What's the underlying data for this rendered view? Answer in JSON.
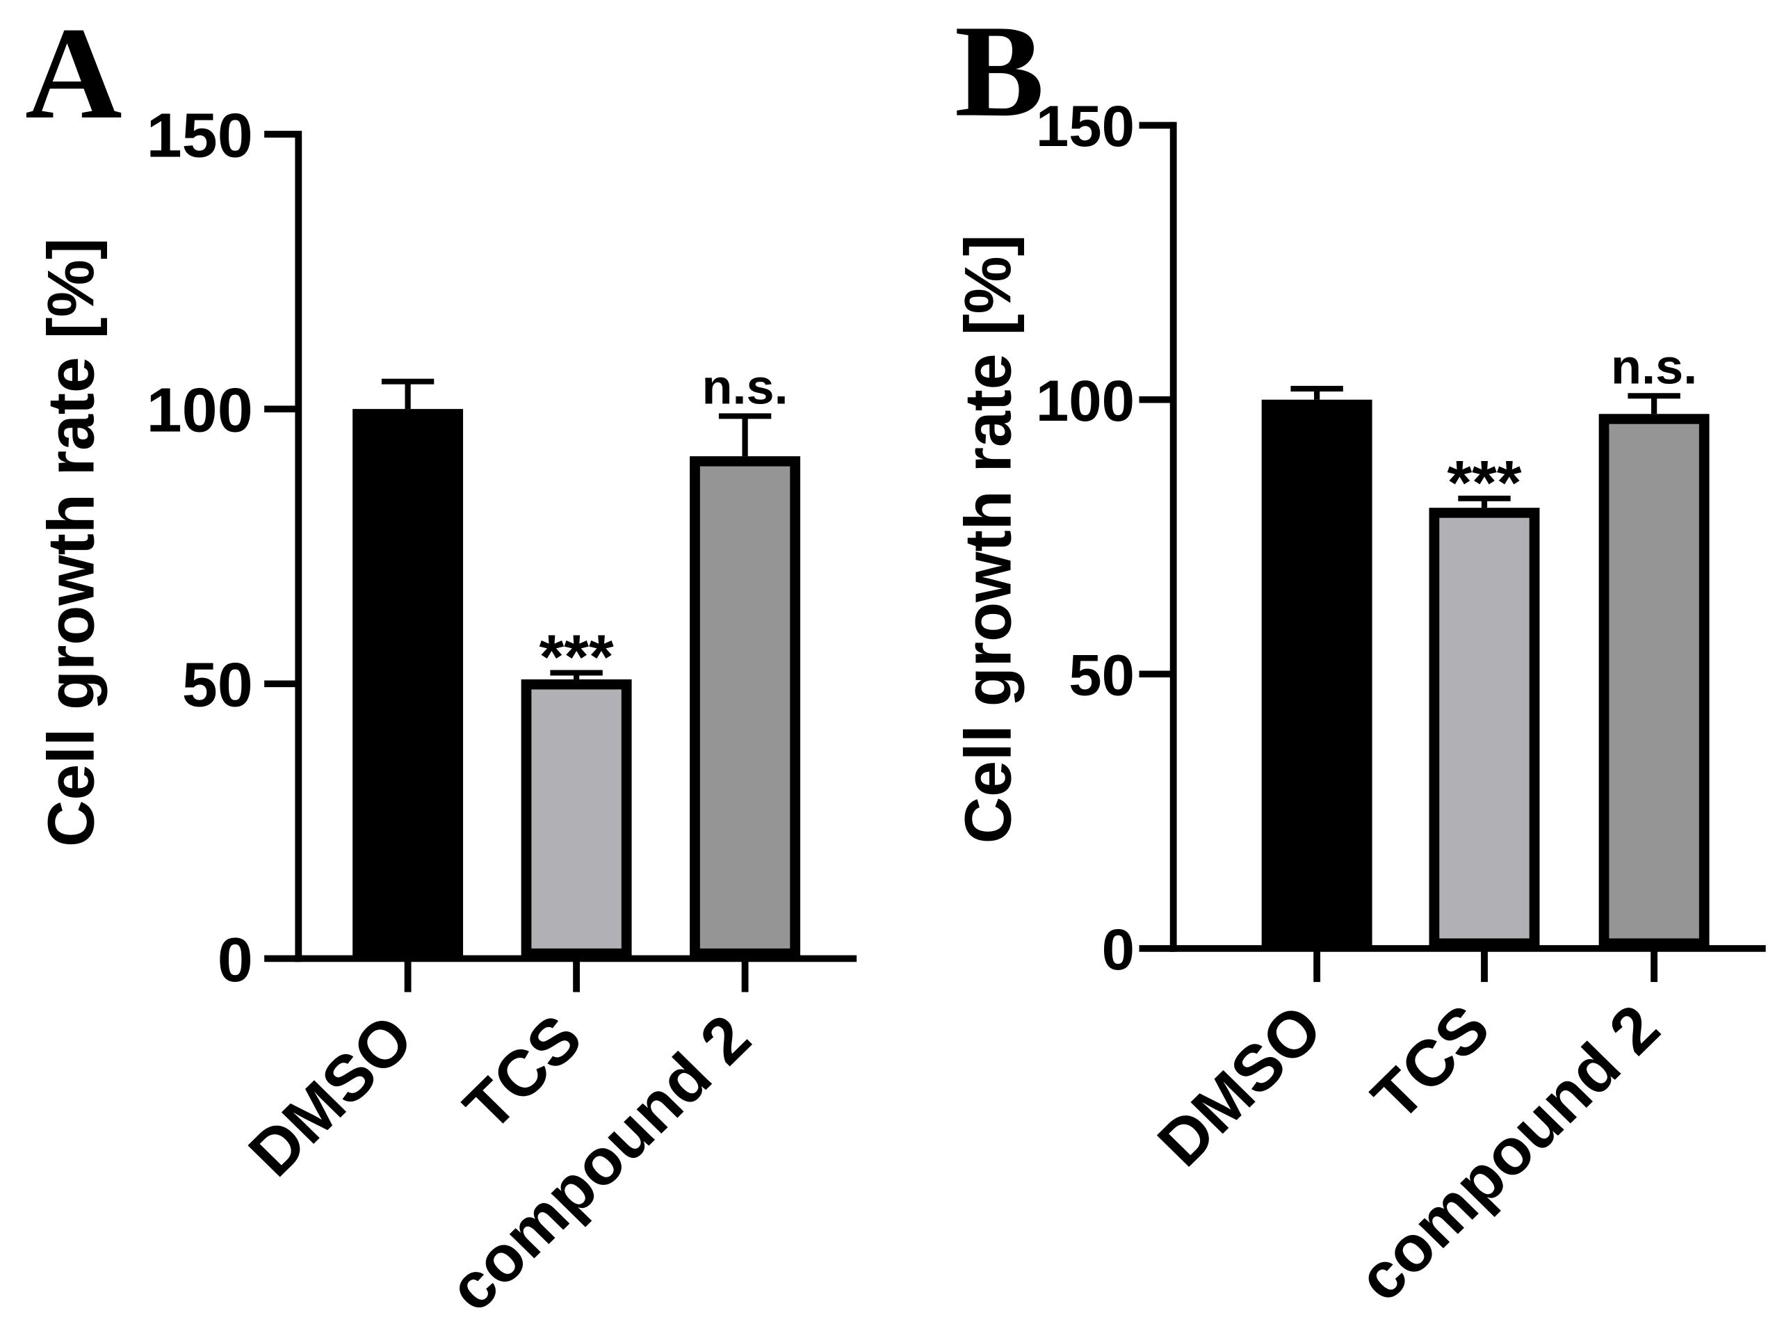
{
  "chart_data": [
    {
      "type": "bar",
      "panel": "A",
      "ylabel": "Cell growth rate [%]",
      "ylim": [
        0,
        150
      ],
      "yticks": [
        0,
        50,
        100,
        150
      ],
      "categories": [
        "DMSO",
        "TCS",
        "compound 2"
      ],
      "values": [
        100,
        50.8,
        91.4
      ],
      "errors": [
        5.0,
        1.2,
        7.3
      ],
      "significance": [
        null,
        "***",
        "n.s."
      ],
      "colors": [
        "#000000",
        "#b1b1b5",
        "#959595"
      ],
      "grid": false
    },
    {
      "type": "bar",
      "panel": "B",
      "ylabel": "Cell growth rate [%]",
      "ylim": [
        0,
        150
      ],
      "yticks": [
        0,
        50,
        100,
        150
      ],
      "categories": [
        "DMSO",
        "TCS",
        "compound 2"
      ],
      "values": [
        100,
        80.3,
        97.4
      ],
      "errors": [
        2.0,
        1.7,
        3.3
      ],
      "significance": [
        null,
        "***",
        "n.s."
      ],
      "colors": [
        "#000000",
        "#b1b1b5",
        "#959595"
      ],
      "grid": false
    }
  ]
}
